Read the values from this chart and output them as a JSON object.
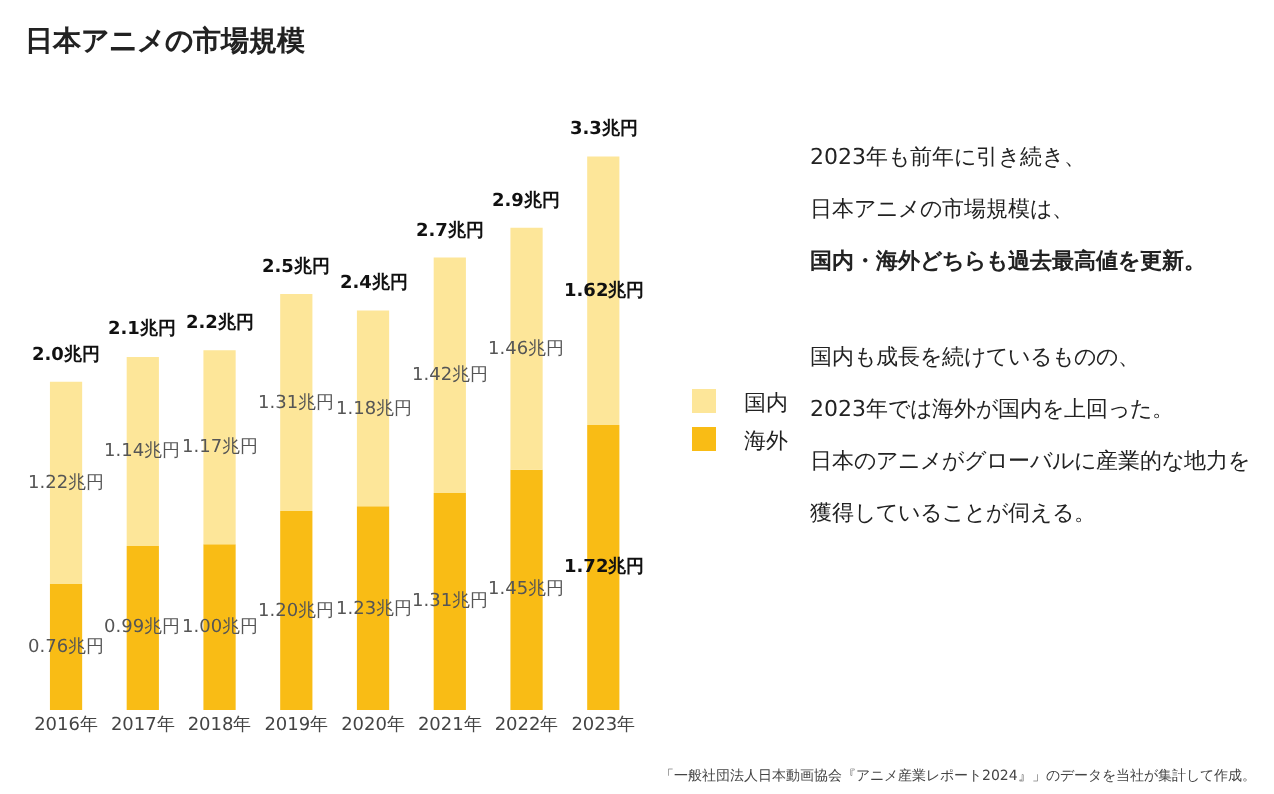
{
  "chart_data": {
    "type": "bar",
    "title": "日本アニメの市場規模",
    "stacked": true,
    "categories": [
      "2016年",
      "2017年",
      "2018年",
      "2019年",
      "2020年",
      "2021年",
      "2022年",
      "2023年"
    ],
    "series": [
      {
        "name": "海外",
        "color": "#f9bc15",
        "values": [
          0.76,
          0.99,
          1.0,
          1.2,
          1.23,
          1.31,
          1.45,
          1.72
        ],
        "value_labels": [
          "0.76兆円",
          "0.99兆円",
          "1.00兆円",
          "1.20兆円",
          "1.23兆円",
          "1.31兆円",
          "1.45兆円",
          "1.72兆円"
        ]
      },
      {
        "name": "国内",
        "color": "#fde699",
        "values": [
          1.22,
          1.14,
          1.17,
          1.31,
          1.18,
          1.42,
          1.46,
          1.62
        ],
        "value_labels": [
          "1.22兆円",
          "1.14兆円",
          "1.17兆円",
          "1.31兆円",
          "1.18兆円",
          "1.42兆円",
          "1.46兆円",
          "1.62兆円"
        ]
      }
    ],
    "totals": [
      "2.0兆円",
      "2.1兆円",
      "2.2兆円",
      "2.5兆円",
      "2.4兆円",
      "2.7兆円",
      "2.9兆円",
      "3.3兆円"
    ],
    "legend": "right",
    "tick_labels": "x",
    "annotations": [
      "2023年も前年に引き続き、",
      "日本アニメの市場規模は、",
      "国内・海外どちらも過去最高値を更新。",
      "国内も成長を続けているものの、",
      "2023年では海外が国内を上回った。",
      "日本のアニメがグローバルに産業的な地力を",
      "獲得していることが伺える。",
      "「一般社団法人日本動画協会『アニメ産業レポート2024』」のデータを当社が集計して作成。"
    ]
  }
}
